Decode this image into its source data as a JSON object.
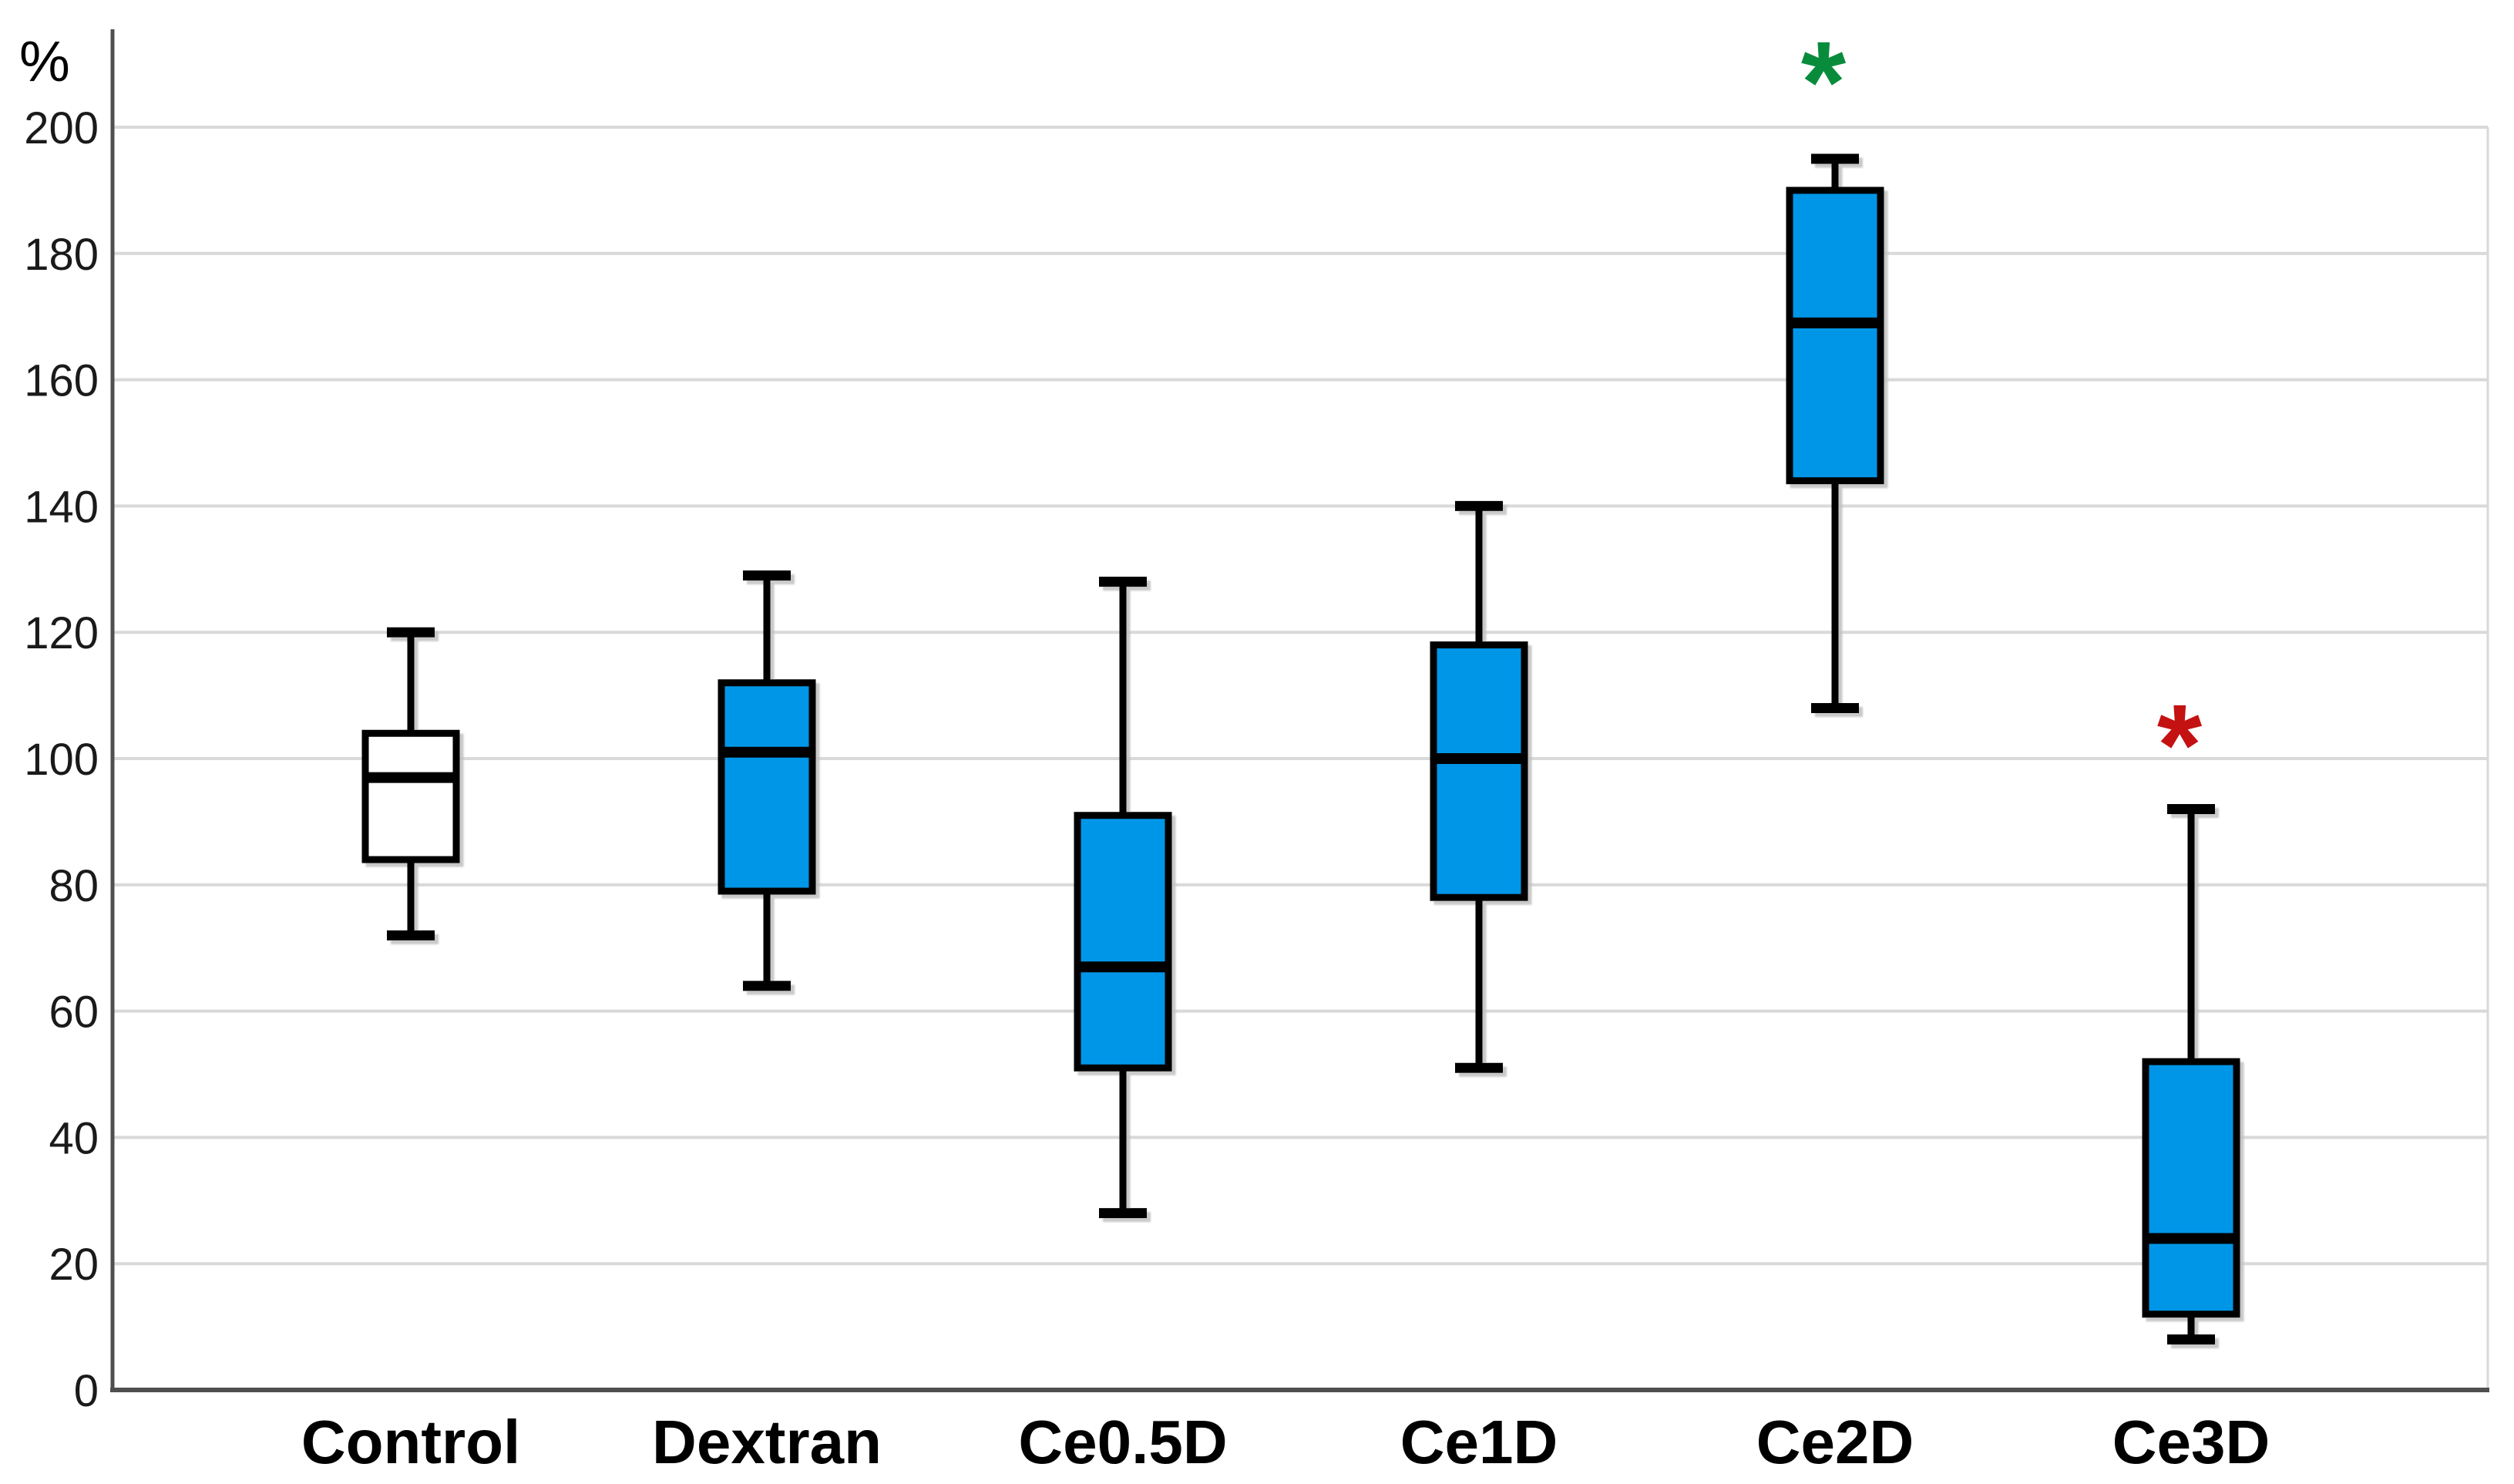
{
  "chart_data": {
    "type": "boxplot",
    "title": "",
    "xlabel": "",
    "ylabel": "%",
    "ylim": [
      0,
      200
    ],
    "yticks": [
      0,
      20,
      40,
      60,
      80,
      100,
      120,
      140,
      160,
      180,
      200
    ],
    "grid": true,
    "legend": "none",
    "categories": [
      "Control",
      "Dextran",
      "Ce0.5D",
      "Ce1D",
      "Ce2D",
      "Ce3D"
    ],
    "series": [
      {
        "name": "Control",
        "min": 72,
        "q1": 84,
        "median": 97,
        "q3": 104,
        "max": 120,
        "fill": "#FFFFFF"
      },
      {
        "name": "Dextran",
        "min": 64,
        "q1": 79,
        "median": 101,
        "q3": 112,
        "max": 129,
        "fill": "#0696E7"
      },
      {
        "name": "Ce0.5D",
        "min": 28,
        "q1": 51,
        "median": 67,
        "q3": 91,
        "max": 128,
        "fill": "#0696E7"
      },
      {
        "name": "Ce1D",
        "min": 51,
        "q1": 78,
        "median": 100,
        "q3": 118,
        "max": 140,
        "fill": "#0696E7"
      },
      {
        "name": "Ce2D",
        "min": 108,
        "q1": 144,
        "median": 169,
        "q3": 190,
        "max": 195,
        "fill": "#0696E7"
      },
      {
        "name": "Ce3D",
        "min": 8,
        "q1": 12,
        "median": 24,
        "q3": 52,
        "max": 92,
        "fill": "#0696E7"
      }
    ],
    "annotations": [
      {
        "category": "Ce2D",
        "symbol": "*",
        "color": "#088C3C",
        "value": 210,
        "meaning": "significance-marker-green"
      },
      {
        "category": "Ce3D",
        "symbol": "*",
        "color": "#C41212",
        "value": 105,
        "meaning": "significance-marker-red"
      }
    ],
    "style": {
      "background": "#FFFFFF",
      "grid_color": "#D9D9D9",
      "axis_color": "#4F4F4F",
      "box_border_color": "#000000",
      "median_color": "#000000",
      "whisker_color": "#000000",
      "tick_label_color": "#1A1A1A",
      "category_label_color": "#000000",
      "shadow_color": "#BFBFBF",
      "box_fill_blue": "#0696E7",
      "box_fill_white": "#FFFFFF"
    }
  }
}
